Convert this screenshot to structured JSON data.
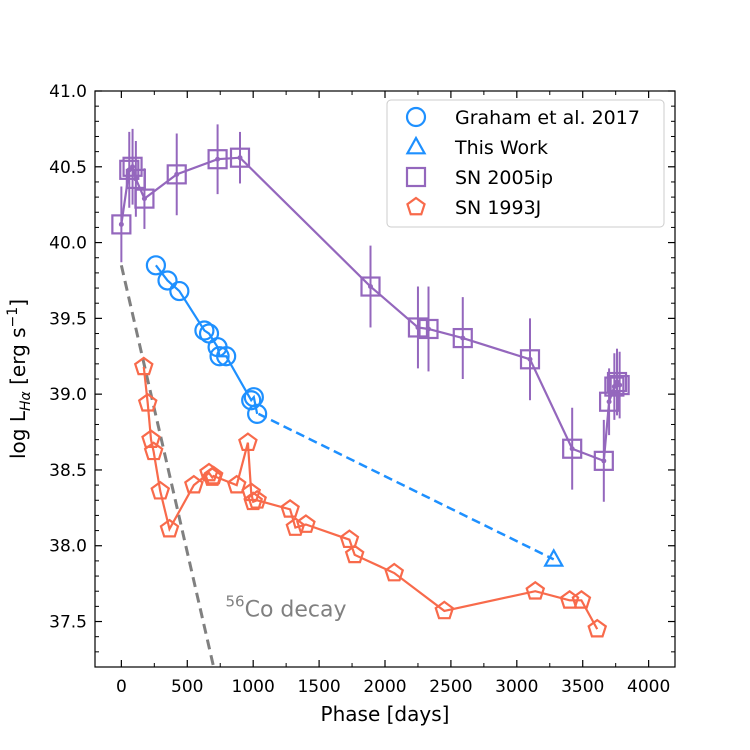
{
  "chart_data": {
    "type": "scatter",
    "title": "",
    "xlabel": "Phase [days]",
    "ylabel_main": "log L",
    "ylabel_sub": "Hα",
    "ylabel_units_pre": " [erg s",
    "ylabel_units_exp": "−1",
    "ylabel_units_post": "]",
    "xlim": [
      -200,
      4200
    ],
    "ylim": [
      37.2,
      41.0
    ],
    "xticks": [
      0,
      500,
      1000,
      1500,
      2000,
      2500,
      3000,
      3500,
      4000
    ],
    "xtick_labels": [
      "0",
      "500",
      "1000",
      "1500",
      "2000",
      "2500",
      "3000",
      "3500",
      "4000"
    ],
    "yticks": [
      37.5,
      38.0,
      38.5,
      39.0,
      39.5,
      40.0,
      40.5,
      41.0
    ],
    "ytick_labels": [
      "37.5",
      "38.0",
      "38.5",
      "39.0",
      "39.5",
      "40.0",
      "40.5",
      "41.0"
    ],
    "annotation": {
      "sup": "56",
      "text": "Co decay",
      "x": 790,
      "y": 37.6
    },
    "cobalt_decay_line": {
      "name": "56Co decay",
      "color": "#808080",
      "x": [
        0,
        700
      ],
      "y": [
        39.85,
        37.2
      ]
    },
    "series": [
      {
        "name": "Graham et al. 2017",
        "marker": "circle",
        "color": "#1e90ff",
        "x": [
          262,
          350,
          440,
          630,
          665,
          730,
          745,
          795,
          985,
          1005,
          1030
        ],
        "y": [
          39.85,
          39.75,
          39.68,
          39.42,
          39.4,
          39.31,
          39.25,
          39.25,
          38.96,
          38.98,
          38.87
        ]
      },
      {
        "name": "This Work",
        "marker": "triangle",
        "color": "#1e90ff",
        "x": [
          3280
        ],
        "y": [
          37.91
        ],
        "dashed_link_from": {
          "x": 1040,
          "y": 38.87
        }
      },
      {
        "name": "SN 2005ip",
        "marker": "square",
        "color": "#9467bd",
        "x": [
          0,
          60,
          85,
          110,
          175,
          420,
          730,
          900,
          1890,
          2250,
          2330,
          2590,
          3100,
          3420,
          3660,
          3700,
          3740,
          3760,
          3780
        ],
        "y": [
          40.12,
          40.48,
          40.5,
          40.42,
          40.29,
          40.45,
          40.55,
          40.56,
          39.71,
          39.44,
          39.43,
          39.37,
          39.23,
          38.64,
          38.56,
          38.95,
          39.05,
          39.08,
          39.06
        ],
        "yerr": [
          0.25,
          0.25,
          0.25,
          0.25,
          0.2,
          0.27,
          0.23,
          0.17,
          0.27,
          0.27,
          0.28,
          0.27,
          0.27,
          0.27,
          0.27,
          0.22,
          0.22,
          0.22,
          0.22
        ],
        "connected_x": [
          0,
          60,
          85,
          110,
          175,
          420,
          730,
          900,
          1890,
          2250,
          2330,
          2590,
          3100,
          3420,
          3660,
          3700,
          3740,
          3760,
          3780
        ],
        "connected_y": [
          40.12,
          40.48,
          40.5,
          40.42,
          40.29,
          40.45,
          40.55,
          40.56,
          39.71,
          39.44,
          39.43,
          39.37,
          39.23,
          38.64,
          38.56,
          38.95,
          39.05,
          39.08,
          39.06
        ]
      },
      {
        "name": "SN 1993J",
        "marker": "pentagon",
        "color": "#f86a4b",
        "x": [
          170,
          200,
          225,
          245,
          295,
          365,
          550,
          665,
          690,
          700,
          875,
          960,
          985,
          1000,
          1030,
          1280,
          1320,
          1400,
          1730,
          1770,
          2070,
          2450,
          3140,
          3400,
          3490,
          3610
        ],
        "y": [
          39.18,
          38.94,
          38.7,
          38.62,
          38.36,
          38.11,
          38.4,
          38.48,
          38.45,
          38.46,
          38.4,
          38.68,
          38.35,
          38.29,
          38.3,
          38.24,
          38.12,
          38.14,
          38.04,
          37.94,
          37.82,
          37.57,
          37.7,
          37.64,
          37.64,
          37.45
        ]
      }
    ],
    "legend": {
      "placement": "top-right",
      "entries": [
        "Graham et al. 2017",
        "This Work",
        "SN 2005ip",
        "SN 1993J"
      ]
    }
  }
}
